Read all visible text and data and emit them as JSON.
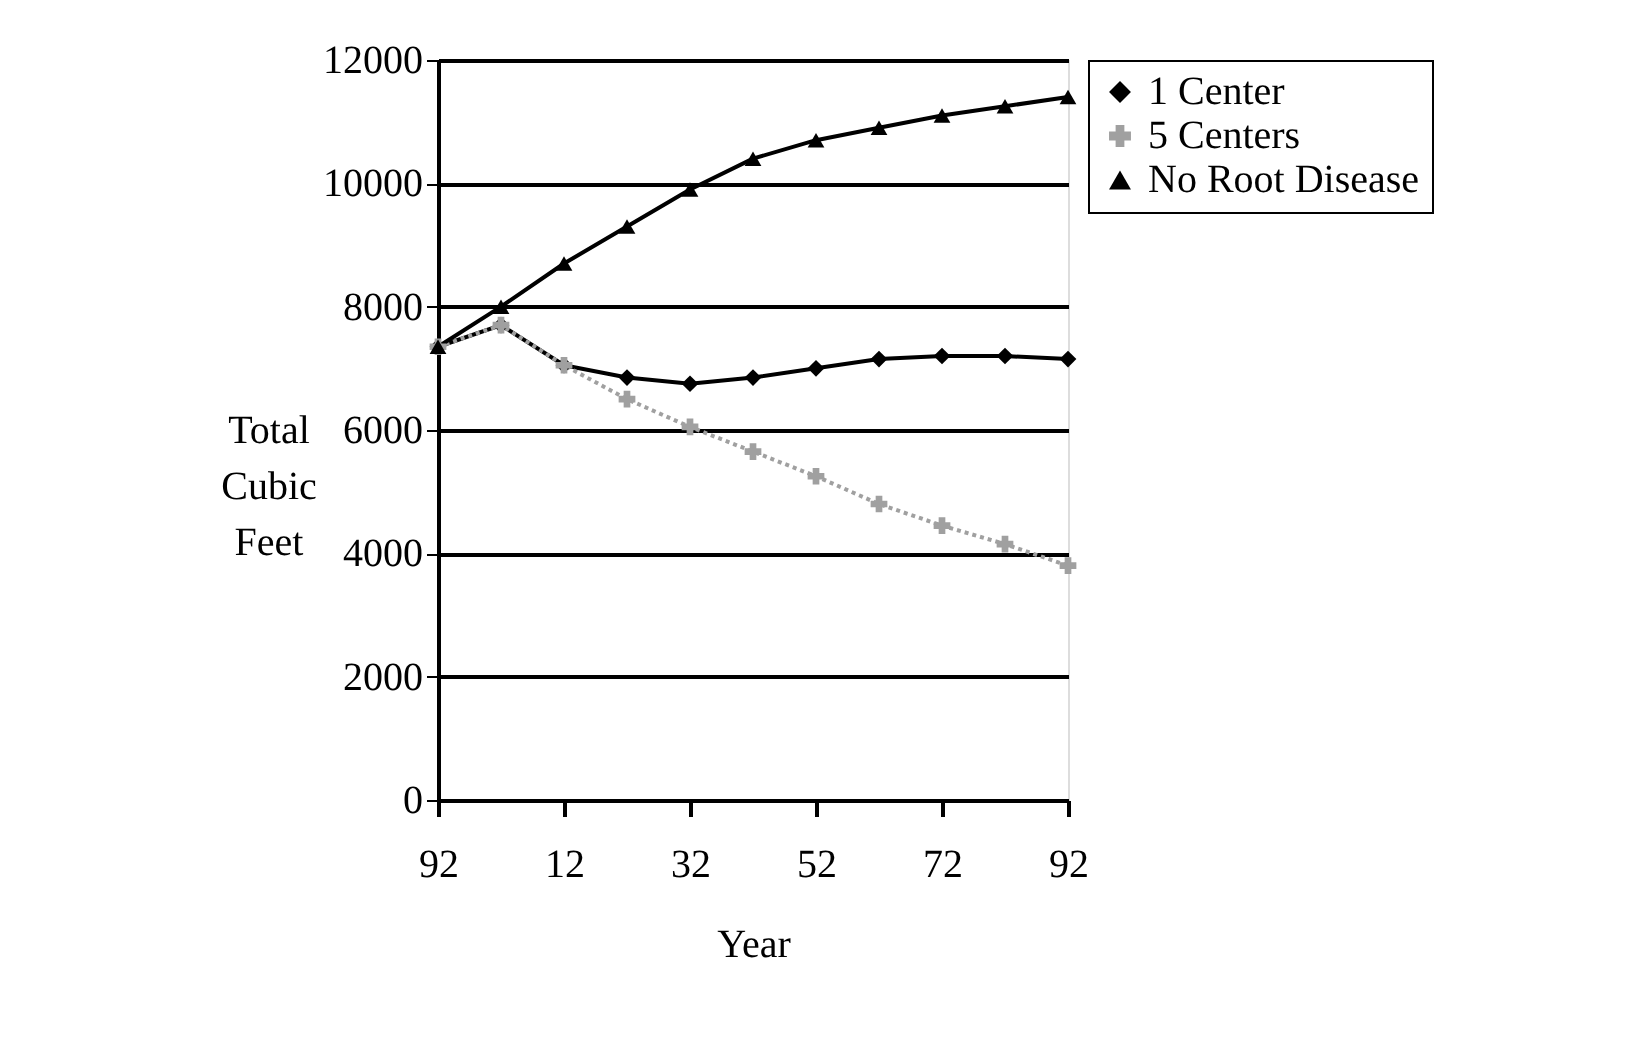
{
  "chart_data": {
    "type": "line",
    "xlabel": "Year",
    "ylabel": "Total Cubic Feet",
    "categories": [
      "92",
      null,
      "12",
      null,
      "32",
      null,
      "52",
      null,
      "72",
      null,
      "92"
    ],
    "ylim": [
      0,
      12000
    ],
    "yticks": [
      0,
      2000,
      4000,
      6000,
      8000,
      10000,
      12000
    ],
    "grid": "y",
    "legend": "right",
    "series": [
      {
        "name": "1 Center",
        "color": "#000000",
        "marker": "diamond",
        "line_style": "solid",
        "values": [
          7350,
          7700,
          7050,
          6850,
          6750,
          6850,
          7000,
          7150,
          7200,
          7200,
          7150
        ]
      },
      {
        "name": "5 Centers",
        "color": "#a0a0a0",
        "marker": "cross",
        "line_style": "dotted",
        "values": [
          7350,
          7700,
          7050,
          6500,
          6050,
          5650,
          5250,
          4800,
          4450,
          4150,
          3800
        ]
      },
      {
        "name": "No Root Disease",
        "color": "#000000",
        "marker": "triangle",
        "line_style": "solid",
        "values": [
          7350,
          8000,
          8700,
          9300,
          9900,
          10400,
          10700,
          10900,
          11100,
          11250,
          11400
        ]
      }
    ]
  }
}
